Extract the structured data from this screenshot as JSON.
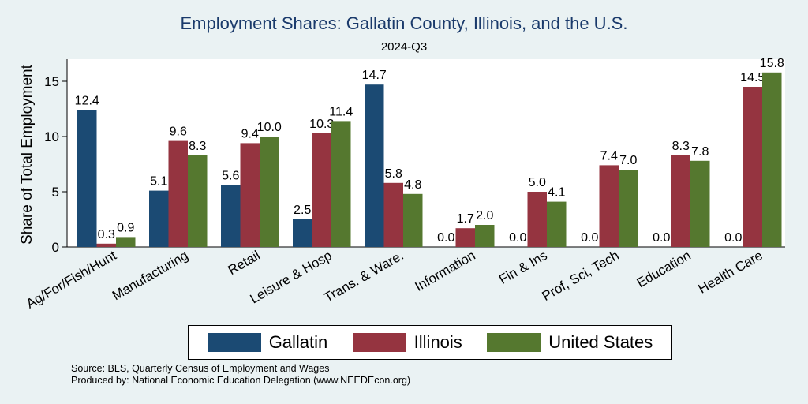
{
  "chart_data": {
    "type": "bar",
    "title": "Employment Shares: Gallatin County, Illinois, and the U.S.",
    "subtitle": "2024-Q3",
    "xlabel": "",
    "ylabel": "Share of Total Employment",
    "ylim": [
      0,
      17
    ],
    "yticks": [
      0,
      5,
      10,
      15
    ],
    "grid": false,
    "legend_position": "bottom",
    "categories": [
      "Ag/For/Fish/Hunt",
      "Manufacturing",
      "Retail",
      "Leisure & Hosp",
      "Trans. & Ware.",
      "Information",
      "Fin & Ins",
      "Prof, Sci, Tech",
      "Education",
      "Health Care"
    ],
    "series": [
      {
        "name": "Gallatin",
        "color": "#1b4a73",
        "values": [
          12.4,
          5.1,
          5.6,
          2.5,
          14.7,
          0.0,
          0.0,
          0.0,
          0.0,
          0.0
        ],
        "labels": [
          "12.4",
          "5.1",
          "5.6",
          "2.5",
          "14.7",
          "0.0",
          "0.0",
          "0.0",
          "0.0",
          "0.0"
        ]
      },
      {
        "name": "Illinois",
        "color": "#953440",
        "values": [
          0.3,
          9.6,
          9.4,
          10.3,
          5.8,
          1.7,
          5.0,
          7.4,
          8.3,
          14.5
        ],
        "labels": [
          "0.3",
          "9.6",
          "9.4",
          "10.3",
          "5.8",
          "1.7",
          "5.0",
          "7.4",
          "8.3",
          "14.5"
        ]
      },
      {
        "name": "United States",
        "color": "#55782f",
        "values": [
          0.9,
          8.3,
          10.0,
          11.4,
          4.8,
          2.0,
          4.1,
          7.0,
          7.8,
          15.8
        ],
        "labels": [
          "0.9",
          "8.3",
          "10.0",
          "11.4",
          "4.8",
          "2.0",
          "4.1",
          "7.0",
          "7.8",
          "15.8"
        ]
      }
    ]
  },
  "notes": {
    "source": "Source: BLS, Quarterly Census of Employment and Wages",
    "produced_by": "Produced by: National Economic Education Delegation (www.NEEDEcon.org)"
  }
}
